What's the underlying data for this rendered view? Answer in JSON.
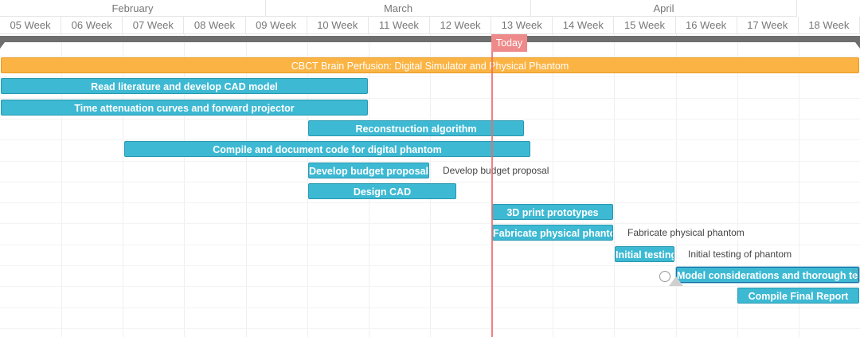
{
  "timeline": {
    "months": [
      "February",
      "March",
      "April"
    ],
    "weeks": [
      "05 Week",
      "06 Week",
      "07 Week",
      "08 Week",
      "09 Week",
      "10 Week",
      "11 Week",
      "12 Week",
      "13 Week",
      "14 Week",
      "15 Week",
      "16 Week",
      "17 Week",
      "18 Week"
    ],
    "today_label": "Today"
  },
  "tasks": [
    {
      "label": "CBCT Brain Perfusion: Digital Simulator and Physical Phantom",
      "type": "project",
      "side_label": ""
    },
    {
      "label": "Read literature and develop CAD model",
      "type": "task",
      "side_label": ""
    },
    {
      "label": "Time attenuation curves and forward projector",
      "type": "task",
      "side_label": ""
    },
    {
      "label": "Reconstruction algorithm",
      "type": "task",
      "side_label": ""
    },
    {
      "label": "Compile and document code for digital phantom",
      "type": "task",
      "side_label": ""
    },
    {
      "label": "Develop budget proposal",
      "type": "task",
      "side_label": "Develop budget proposal"
    },
    {
      "label": "Design CAD",
      "type": "task",
      "side_label": ""
    },
    {
      "label": "3D print prototypes",
      "type": "task",
      "side_label": ""
    },
    {
      "label": "Fabricate physical phantom",
      "type": "task",
      "side_label": "Fabricate physical phantom"
    },
    {
      "label": "Initial testing",
      "type": "task",
      "side_label": "Initial testing of phantom"
    },
    {
      "label": "Model considerations and thorough testing",
      "type": "task",
      "side_label": "",
      "selected": true
    },
    {
      "label": "Compile Final Report",
      "type": "task",
      "side_label": ""
    }
  ],
  "colors": {
    "task": "#3db9d3",
    "project": "#fbb444",
    "today": "#ef6b6b",
    "summary": "#6e6e6e"
  }
}
